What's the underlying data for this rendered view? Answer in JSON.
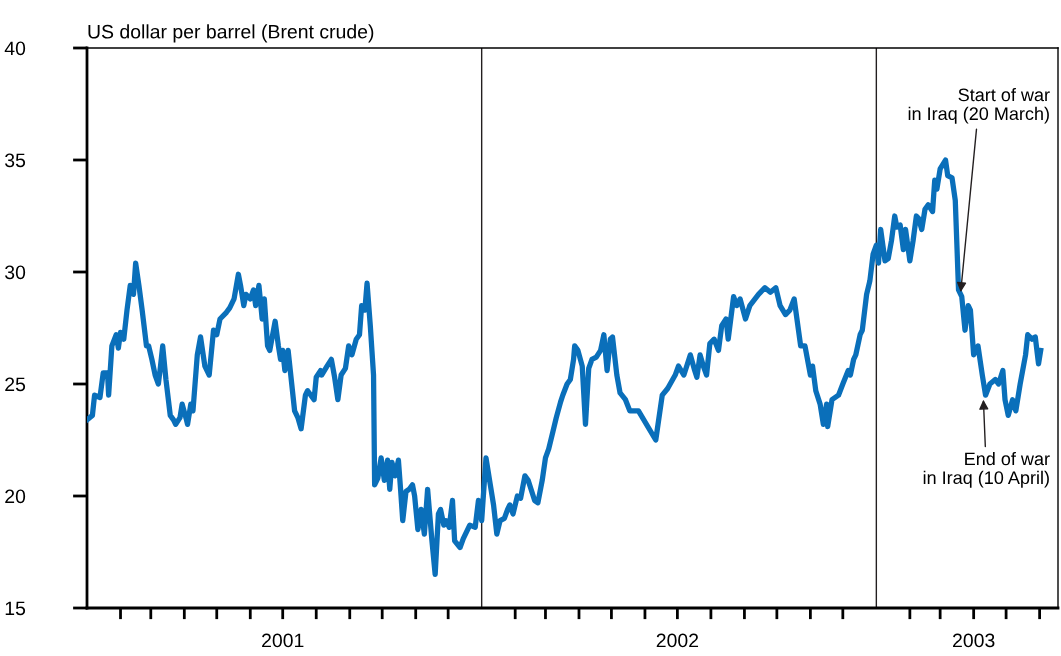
{
  "chart_data": {
    "type": "line",
    "ylabel": "US dollar per barrel (Brent crude)",
    "x": [
      "2001-01-01",
      "2001-01-06",
      "2001-01-08",
      "2001-01-13",
      "2001-01-16",
      "2001-01-20",
      "2001-01-21",
      "2001-01-24",
      "2001-01-28",
      "2001-01-30",
      "2001-02-01",
      "2001-02-04",
      "2001-02-07",
      "2001-02-10",
      "2001-02-13",
      "2001-02-15",
      "2001-02-18",
      "2001-02-21",
      "2001-02-25",
      "2001-02-27",
      "2001-03-02",
      "2001-03-05",
      "2001-03-08",
      "2001-03-10",
      "2001-03-12",
      "2001-03-15",
      "2001-03-19",
      "2001-03-22",
      "2001-03-24",
      "2001-03-28",
      "2001-03-30",
      "2001-04-03",
      "2001-04-04",
      "2001-04-07",
      "2001-04-09",
      "2001-04-13",
      "2001-04-16",
      "2001-04-20",
      "2001-04-24",
      "2001-04-28",
      "2001-05-01",
      "2001-05-04",
      "2001-05-10",
      "2001-05-13",
      "2001-05-17",
      "2001-05-21",
      "2001-05-23",
      "2001-05-26",
      "2001-05-28",
      "2001-06-01",
      "2001-06-04",
      "2001-06-06",
      "2001-06-09",
      "2001-06-12",
      "2001-06-14",
      "2001-06-17",
      "2001-06-19",
      "2001-06-24",
      "2001-06-27",
      "2001-06-29",
      "2001-07-01",
      "2001-07-03",
      "2001-07-06",
      "2001-07-12",
      "2001-07-15",
      "2001-07-18",
      "2001-07-22",
      "2001-07-24",
      "2001-07-30",
      "2001-08-01",
      "2001-08-05",
      "2001-08-06",
      "2001-08-11",
      "2001-08-15",
      "2001-08-18",
      "2001-08-21",
      "2001-08-24",
      "2001-08-28",
      "2001-08-31",
      "2001-09-03",
      "2001-09-07",
      "2001-09-10",
      "2001-09-12",
      "2001-09-15",
      "2001-09-17",
      "2001-09-20",
      "2001-09-23",
      "2001-09-24",
      "2001-09-27",
      "2001-09-30",
      "2001-10-03",
      "2001-10-06",
      "2001-10-08",
      "2001-10-10",
      "2001-10-13",
      "2001-10-16",
      "2001-10-18",
      "2001-10-20",
      "2001-10-23",
      "2001-10-26",
      "2001-10-29",
      "2001-10-31",
      "2001-11-03",
      "2001-11-06",
      "2001-11-09",
      "2001-11-12",
      "2001-11-16",
      "2001-11-19",
      "2001-11-22",
      "2001-11-24",
      "2001-11-27",
      "2001-11-29",
      "2001-12-02",
      "2001-12-05",
      "2001-12-07",
      "2001-12-12",
      "2001-12-15",
      "2001-12-19",
      "2001-12-21",
      "2001-12-26",
      "2001-12-29",
      "2002-01-01",
      "2002-01-05",
      "2002-01-09",
      "2002-01-12",
      "2002-01-15",
      "2002-01-18",
      "2002-01-22",
      "2002-01-25",
      "2002-01-27",
      "2002-01-30",
      "2002-02-03",
      "2002-02-06",
      "2002-02-10",
      "2002-02-13",
      "2002-02-15",
      "2002-02-19",
      "2002-02-22",
      "2002-02-26",
      "2002-03-01",
      "2002-03-04",
      "2002-03-08",
      "2002-03-11",
      "2002-03-15",
      "2002-03-17",
      "2002-03-21",
      "2002-03-24",
      "2002-03-27",
      "2002-03-28",
      "2002-03-31",
      "2002-04-04",
      "2002-04-07",
      "2002-04-10",
      "2002-04-13",
      "2002-04-17",
      "2002-04-21",
      "2002-04-24",
      "2002-04-27",
      "2002-04-30",
      "2002-05-02",
      "2002-05-06",
      "2002-05-09",
      "2002-05-14",
      "2002-05-18",
      "2002-05-26",
      "2002-06-11",
      "2002-06-17",
      "2002-06-22",
      "2002-06-29",
      "2002-07-02",
      "2002-07-07",
      "2002-07-13",
      "2002-07-17",
      "2002-07-19",
      "2002-07-22",
      "2002-07-25",
      "2002-07-28",
      "2002-07-31",
      "2002-08-04",
      "2002-08-08",
      "2002-08-11",
      "2002-08-15",
      "2002-08-17",
      "2002-08-22",
      "2002-08-25",
      "2002-08-28",
      "2002-09-02",
      "2002-09-06",
      "2002-09-14",
      "2002-09-20",
      "2002-09-25",
      "2002-09-30",
      "2002-10-04",
      "2002-10-09",
      "2002-10-13",
      "2002-10-17",
      "2002-10-23",
      "2002-10-27",
      "2002-11-01",
      "2002-11-03",
      "2002-11-06",
      "2002-11-10",
      "2002-11-13",
      "2002-11-16",
      "2002-11-17",
      "2002-11-21",
      "2002-11-27",
      "2002-12-01",
      "2002-12-06",
      "2002-12-08",
      "2002-12-11",
      "2002-12-13",
      "2002-12-17",
      "2002-12-19",
      "2002-12-23",
      "2002-12-26",
      "2002-12-29",
      "2003-01-01",
      "2003-01-03",
      "2003-01-05",
      "2003-01-09",
      "2003-01-12",
      "2003-01-15",
      "2003-01-18",
      "2003-01-20",
      "2003-01-23",
      "2003-01-26",
      "2003-01-28",
      "2003-02-01",
      "2003-02-04",
      "2003-02-07",
      "2003-02-09",
      "2003-02-12",
      "2003-02-15",
      "2003-02-18",
      "2003-02-22",
      "2003-02-24",
      "2003-02-26",
      "2003-03-01",
      "2003-03-06",
      "2003-03-08",
      "2003-03-12",
      "2003-03-15",
      "2003-03-18",
      "2003-03-21",
      "2003-03-24",
      "2003-03-27",
      "2003-03-29",
      "2003-04-01",
      "2003-04-05",
      "2003-04-09",
      "2003-04-12",
      "2003-04-16",
      "2003-04-21",
      "2003-04-24",
      "2003-04-28",
      "2003-04-30",
      "2003-05-03",
      "2003-05-07",
      "2003-05-10",
      "2003-05-14",
      "2003-05-19",
      "2003-05-21",
      "2003-05-25",
      "2003-05-28",
      "2003-05-31",
      "2003-06-02"
    ],
    "series": [
      {
        "color": "#0a6fba",
        "values": [
          23.4,
          23.6,
          24.5,
          24.4,
          25.5,
          25.5,
          24.5,
          26.7,
          27.2,
          26.6,
          27.3,
          27.0,
          28.3,
          29.4,
          29.0,
          30.4,
          29.4,
          28.3,
          26.7,
          26.7,
          26.1,
          25.4,
          25.0,
          25.8,
          26.7,
          25.2,
          23.6,
          23.4,
          23.2,
          23.5,
          24.1,
          23.4,
          23.2,
          24.1,
          23.8,
          26.3,
          27.1,
          25.8,
          25.4,
          27.4,
          27.2,
          27.9,
          28.2,
          28.4,
          28.8,
          29.9,
          29.4,
          28.5,
          29.0,
          28.8,
          29.2,
          28.5,
          29.4,
          27.9,
          28.8,
          26.7,
          26.5,
          27.8,
          26.7,
          26.1,
          26.5,
          25.6,
          26.5,
          23.8,
          23.5,
          23.0,
          24.5,
          24.7,
          24.3,
          25.3,
          25.6,
          25.4,
          25.8,
          26.1,
          25.3,
          24.3,
          25.4,
          25.7,
          26.7,
          26.3,
          27.0,
          27.2,
          28.5,
          28.3,
          29.5,
          27.6,
          25.4,
          20.5,
          20.8,
          21.7,
          20.7,
          21.6,
          20.3,
          21.5,
          20.9,
          21.6,
          20.3,
          18.9,
          20.2,
          20.3,
          20.5,
          20.0,
          18.5,
          19.4,
          18.3,
          20.3,
          18.0,
          16.5,
          19.2,
          19.4,
          18.7,
          18.9,
          18.6,
          19.8,
          18.0,
          17.7,
          18.1,
          18.5,
          18.7,
          18.6,
          19.8,
          18.9,
          21.7,
          20.5,
          19.6,
          18.3,
          18.9,
          19.0,
          19.4,
          19.6,
          19.2,
          20.0,
          19.9,
          20.9,
          20.7,
          20.4,
          19.8,
          19.7,
          20.7,
          21.7,
          22.1,
          22.9,
          23.5,
          24.2,
          24.5,
          25.0,
          25.2,
          26.1,
          26.7,
          26.5,
          25.8,
          23.2,
          25.7,
          26.1,
          26.2,
          26.5,
          27.2,
          25.6,
          27.0,
          27.1,
          25.4,
          24.6,
          24.3,
          23.8,
          23.8,
          22.5,
          24.5,
          24.8,
          25.4,
          25.8,
          25.4,
          26.3,
          25.6,
          25.3,
          26.3,
          25.8,
          25.4,
          26.8,
          27.0,
          26.5,
          27.6,
          27.9,
          27.0,
          28.9,
          28.5,
          28.8,
          27.9,
          28.5,
          29.0,
          29.3,
          29.1,
          29.3,
          28.5,
          28.1,
          28.3,
          28.8,
          26.7,
          26.7,
          25.4,
          25.8,
          24.7,
          24.1,
          23.2,
          24.1,
          23.1,
          24.3,
          24.5,
          25.0,
          25.6,
          25.4,
          26.1,
          26.3,
          27.2,
          27.4,
          29.0,
          29.6,
          30.8,
          31.2,
          30.4,
          31.9,
          30.5,
          30.6,
          31.4,
          32.5,
          32.0,
          32.1,
          31.0,
          31.9,
          30.5,
          31.4,
          32.5,
          32.4,
          31.9,
          32.8,
          33.0,
          32.7,
          34.1,
          33.7,
          34.6,
          35.0,
          34.3,
          34.2,
          33.2,
          29.2,
          28.9,
          27.4,
          28.5,
          28.3,
          26.3,
          26.7,
          25.4,
          24.5,
          25.0,
          25.2,
          25.0,
          25.6,
          24.3,
          23.6,
          24.3,
          23.8,
          25.0,
          26.3,
          27.2,
          27.0,
          27.1,
          25.9,
          26.5
        ]
      }
    ],
    "xlim": [
      "2001-01-01",
      "2003-06-18"
    ],
    "xticks": [
      {
        "value": "2001-02-01",
        "label": null
      },
      {
        "value": "2001-03-01",
        "label": null
      },
      {
        "value": "2001-04-01",
        "label": null
      },
      {
        "value": "2001-05-01",
        "label": null
      },
      {
        "value": "2001-06-01",
        "label": null
      },
      {
        "value": "2001-07-01",
        "label": "2001"
      },
      {
        "value": "2001-08-01",
        "label": null
      },
      {
        "value": "2001-09-01",
        "label": null
      },
      {
        "value": "2001-10-01",
        "label": null
      },
      {
        "value": "2001-11-01",
        "label": null
      },
      {
        "value": "2001-12-01",
        "label": null
      },
      {
        "value": "2002-02-01",
        "label": null
      },
      {
        "value": "2002-03-01",
        "label": null
      },
      {
        "value": "2002-04-01",
        "label": null
      },
      {
        "value": "2002-05-01",
        "label": null
      },
      {
        "value": "2002-06-01",
        "label": null
      },
      {
        "value": "2002-07-01",
        "label": "2002"
      },
      {
        "value": "2002-08-01",
        "label": null
      },
      {
        "value": "2002-09-01",
        "label": null
      },
      {
        "value": "2002-10-01",
        "label": null
      },
      {
        "value": "2002-11-01",
        "label": null
      },
      {
        "value": "2002-12-01",
        "label": null
      },
      {
        "value": "2003-02-01",
        "label": null
      },
      {
        "value": "2003-03-01",
        "label": null
      },
      {
        "value": "2003-04-01",
        "label": "2003"
      },
      {
        "value": "2003-05-01",
        "label": null
      },
      {
        "value": "2003-06-01",
        "label": null
      }
    ],
    "ylim": [
      15,
      40
    ],
    "yticks": [
      15,
      20,
      25,
      30,
      35,
      40
    ],
    "ref_lines": [
      {
        "axis": "x",
        "value": "2002-01-01",
        "color": "#231f20"
      },
      {
        "axis": "x",
        "value": "2003-01-01",
        "color": "#231f20"
      }
    ],
    "annotations": [
      {
        "text": "Start of war\nin Iraq (20 March)",
        "x": "2003-03-20",
        "y": 29.1
      },
      {
        "text": "End of war\nin Iraq (10 April)",
        "x": "2003-04-10",
        "y": 24.3
      }
    ],
    "grid": false,
    "legend": false,
    "marker": "none",
    "line_style": "solid"
  }
}
